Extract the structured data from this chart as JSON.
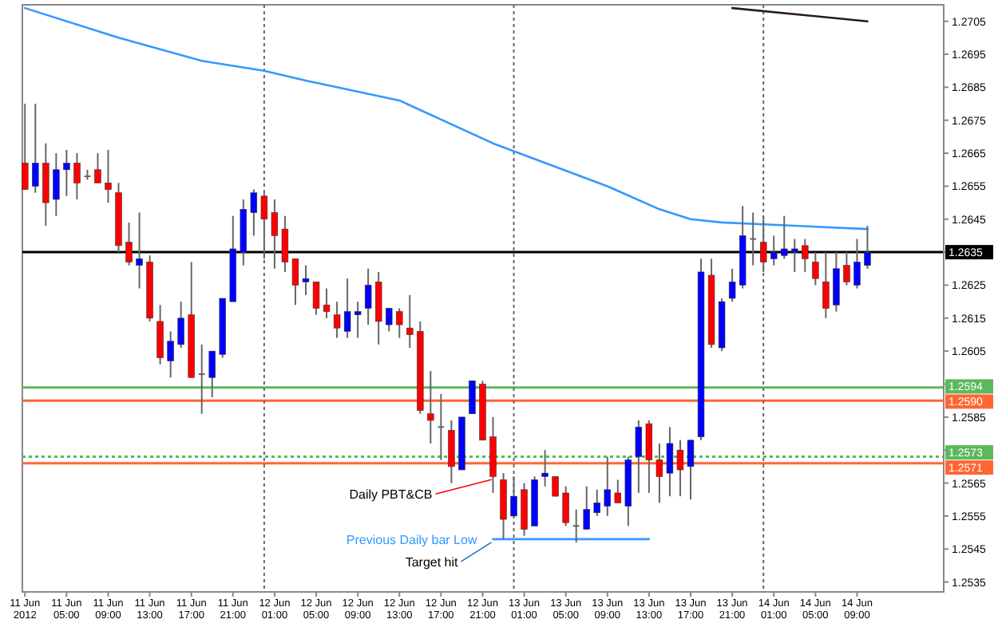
{
  "chart_data": {
    "type": "candlestick",
    "x": [
      "2012-06-11T01:00",
      "2012-06-11T02:00",
      "2012-06-11T03:00",
      "2012-06-11T04:00",
      "2012-06-11T05:00",
      "2012-06-11T06:00",
      "2012-06-11T07:00",
      "2012-06-11T08:00",
      "2012-06-11T09:00",
      "2012-06-11T10:00",
      "2012-06-11T11:00",
      "2012-06-11T12:00",
      "2012-06-11T13:00",
      "2012-06-11T14:00",
      "2012-06-11T15:00",
      "2012-06-11T16:00",
      "2012-06-11T17:00",
      "2012-06-11T18:00",
      "2012-06-11T19:00",
      "2012-06-11T20:00",
      "2012-06-11T21:00",
      "2012-06-11T22:00",
      "2012-06-11T23:00",
      "2012-06-12T00:00",
      "2012-06-12T01:00",
      "2012-06-12T02:00",
      "2012-06-12T03:00",
      "2012-06-12T04:00",
      "2012-06-12T05:00",
      "2012-06-12T06:00",
      "2012-06-12T07:00",
      "2012-06-12T08:00",
      "2012-06-12T09:00",
      "2012-06-12T10:00",
      "2012-06-12T11:00",
      "2012-06-12T12:00",
      "2012-06-12T13:00",
      "2012-06-12T14:00",
      "2012-06-12T15:00",
      "2012-06-12T16:00",
      "2012-06-12T17:00",
      "2012-06-12T18:00",
      "2012-06-12T19:00",
      "2012-06-12T20:00",
      "2012-06-12T21:00",
      "2012-06-12T22:00",
      "2012-06-12T23:00",
      "2012-06-13T00:00",
      "2012-06-13T01:00",
      "2012-06-13T02:00",
      "2012-06-13T03:00",
      "2012-06-13T04:00",
      "2012-06-13T05:00",
      "2012-06-13T06:00",
      "2012-06-13T07:00",
      "2012-06-13T08:00",
      "2012-06-13T09:00",
      "2012-06-13T10:00",
      "2012-06-13T11:00",
      "2012-06-13T12:00",
      "2012-06-13T13:00",
      "2012-06-13T14:00",
      "2012-06-13T15:00",
      "2012-06-13T16:00",
      "2012-06-13T17:00",
      "2012-06-13T18:00",
      "2012-06-13T19:00",
      "2012-06-13T20:00",
      "2012-06-13T21:00",
      "2012-06-13T22:00",
      "2012-06-13T23:00",
      "2012-06-14T00:00",
      "2012-06-14T01:00",
      "2012-06-14T02:00",
      "2012-06-14T03:00",
      "2012-06-14T04:00",
      "2012-06-14T05:00",
      "2012-06-14T06:00",
      "2012-06-14T07:00",
      "2012-06-14T08:00",
      "2012-06-14T09:00",
      "2012-06-14T10:00"
    ],
    "ohlc": [
      [
        1.2662,
        1.268,
        1.2654,
        1.2654
      ],
      [
        1.2655,
        1.268,
        1.2653,
        1.2662
      ],
      [
        1.2662,
        1.2668,
        1.2643,
        1.265
      ],
      [
        1.2651,
        1.2665,
        1.2646,
        1.266
      ],
      [
        1.266,
        1.2666,
        1.2652,
        1.2662
      ],
      [
        1.2662,
        1.2665,
        1.2651,
        1.2656
      ],
      [
        1.2658,
        1.266,
        1.2657,
        1.2658
      ],
      [
        1.266,
        1.2665,
        1.2656,
        1.2656
      ],
      [
        1.2656,
        1.2666,
        1.265,
        1.2654
      ],
      [
        1.2653,
        1.2656,
        1.2635,
        1.2637
      ],
      [
        1.2638,
        1.2644,
        1.2631,
        1.2632
      ],
      [
        1.2631,
        1.2647,
        1.2624,
        1.2633
      ],
      [
        1.2632,
        1.2634,
        1.2614,
        1.2615
      ],
      [
        1.2614,
        1.2619,
        1.2601,
        1.2603
      ],
      [
        1.2602,
        1.2611,
        1.2597,
        1.2608
      ],
      [
        1.2607,
        1.262,
        1.2606,
        1.2615
      ],
      [
        1.2616,
        1.2632,
        1.2597,
        1.2597
      ],
      [
        1.2598,
        1.2607,
        1.2586,
        1.2598
      ],
      [
        1.2597,
        1.2605,
        1.2591,
        1.2605
      ],
      [
        1.2604,
        1.2621,
        1.2603,
        1.2621
      ],
      [
        1.262,
        1.2646,
        1.262,
        1.2636
      ],
      [
        1.2635,
        1.2651,
        1.2631,
        1.2648
      ],
      [
        1.2647,
        1.2654,
        1.264,
        1.2653
      ],
      [
        1.2652,
        1.2653,
        1.2633,
        1.2645
      ],
      [
        1.2647,
        1.2651,
        1.263,
        1.264
      ],
      [
        1.2642,
        1.2646,
        1.2629,
        1.2632
      ],
      [
        1.2633,
        1.2633,
        1.2619,
        1.2625
      ],
      [
        1.2626,
        1.2631,
        1.2622,
        1.2627
      ],
      [
        1.2626,
        1.2626,
        1.2616,
        1.2618
      ],
      [
        1.2619,
        1.2624,
        1.2615,
        1.2617
      ],
      [
        1.2616,
        1.262,
        1.2609,
        1.2612
      ],
      [
        1.2611,
        1.2627,
        1.2609,
        1.2617
      ],
      [
        1.2616,
        1.262,
        1.2609,
        1.2617
      ],
      [
        1.2618,
        1.263,
        1.2613,
        1.2625
      ],
      [
        1.2626,
        1.2629,
        1.2607,
        1.2614
      ],
      [
        1.2613,
        1.2618,
        1.2611,
        1.2618
      ],
      [
        1.2617,
        1.2618,
        1.2609,
        1.2613
      ],
      [
        1.2612,
        1.2622,
        1.2606,
        1.261
      ],
      [
        1.2611,
        1.2614,
        1.2586,
        1.2587
      ],
      [
        1.2586,
        1.2599,
        1.2577,
        1.2584
      ],
      [
        1.2582,
        1.2592,
        1.2572,
        1.2582
      ],
      [
        1.2581,
        1.2584,
        1.2565,
        1.257
      ],
      [
        1.2569,
        1.2585,
        1.2569,
        1.2585
      ],
      [
        1.2586,
        1.2596,
        1.2586,
        1.2596
      ],
      [
        1.2595,
        1.2596,
        1.2578,
        1.2578
      ],
      [
        1.2579,
        1.2585,
        1.2562,
        1.2567
      ],
      [
        1.2566,
        1.2568,
        1.2548,
        1.2554
      ],
      [
        1.2555,
        1.2567,
        1.2555,
        1.2561
      ],
      [
        1.2563,
        1.2565,
        1.2549,
        1.2551
      ],
      [
        1.2552,
        1.2567,
        1.2552,
        1.2566
      ],
      [
        1.2567,
        1.2575,
        1.2564,
        1.2568
      ],
      [
        1.2567,
        1.2567,
        1.2561,
        1.2561
      ],
      [
        1.2562,
        1.2564,
        1.2552,
        1.2553
      ],
      [
        1.2552,
        1.2557,
        1.2547,
        1.2552
      ],
      [
        1.2551,
        1.2564,
        1.2551,
        1.2557
      ],
      [
        1.2556,
        1.2563,
        1.2555,
        1.2559
      ],
      [
        1.2558,
        1.2573,
        1.2555,
        1.2563
      ],
      [
        1.2562,
        1.2566,
        1.2559,
        1.2559
      ],
      [
        1.2558,
        1.2573,
        1.2552,
        1.2572
      ],
      [
        1.2573,
        1.2584,
        1.2562,
        1.2582
      ],
      [
        1.2583,
        1.2584,
        1.2562,
        1.2572
      ],
      [
        1.2572,
        1.2577,
        1.2559,
        1.2567
      ],
      [
        1.2568,
        1.2582,
        1.2561,
        1.2577
      ],
      [
        1.2575,
        1.2578,
        1.2561,
        1.2569
      ],
      [
        1.257,
        1.2578,
        1.256,
        1.2578
      ],
      [
        1.2579,
        1.2633,
        1.2578,
        1.2629
      ],
      [
        1.2628,
        1.2633,
        1.2606,
        1.2607
      ],
      [
        1.2606,
        1.2621,
        1.2605,
        1.262
      ],
      [
        1.2621,
        1.263,
        1.262,
        1.2626
      ],
      [
        1.2625,
        1.2649,
        1.2624,
        1.264
      ],
      [
        1.2639,
        1.2647,
        1.2631,
        1.2639
      ],
      [
        1.2638,
        1.2646,
        1.2629,
        1.2632
      ],
      [
        1.2633,
        1.264,
        1.2631,
        1.2635
      ],
      [
        1.2634,
        1.2646,
        1.2633,
        1.2636
      ],
      [
        1.2635,
        1.2639,
        1.2629,
        1.2636
      ],
      [
        1.2637,
        1.2639,
        1.2629,
        1.2633
      ],
      [
        1.2632,
        1.2635,
        1.2625,
        1.2627
      ],
      [
        1.2626,
        1.2635,
        1.2615,
        1.2618
      ],
      [
        1.2619,
        1.2635,
        1.2617,
        1.263
      ],
      [
        1.2631,
        1.2635,
        1.2625,
        1.2626
      ],
      [
        1.2625,
        1.2639,
        1.2624,
        1.2632
      ],
      [
        1.2631,
        1.2643,
        1.263,
        1.2635
      ]
    ],
    "series": [
      {
        "type": "line",
        "color": "#3399ff",
        "x": [
          "2012-06-11T01:00",
          "2012-06-11T10:00",
          "2012-06-11T18:00",
          "2012-06-12T00:00",
          "2012-06-12T04:00",
          "2012-06-12T13:00",
          "2012-06-12T22:00",
          "2012-06-13T09:00",
          "2012-06-13T14:00",
          "2012-06-13T17:00",
          "2012-06-13T20:00",
          "2012-06-14T03:00",
          "2012-06-14T10:00"
        ],
        "values": [
          1.2709,
          1.27,
          1.2693,
          1.269,
          1.2687,
          1.2681,
          1.2668,
          1.2655,
          1.2648,
          1.2645,
          1.2644,
          1.2643,
          1.2642
        ]
      },
      {
        "type": "line",
        "color": "#2b1a1a",
        "x": [
          "2012-06-13T21:00",
          "2012-06-14T10:00"
        ],
        "values": [
          1.2709,
          1.2705
        ]
      },
      {
        "type": "line",
        "color": "#3399ff",
        "name": "Previous Daily bar Low",
        "x": [
          "2012-06-12T22:00",
          "2012-06-13T13:00"
        ],
        "values": [
          1.2548,
          1.2548
        ]
      }
    ],
    "xlim": [
      "2012-06-11T00:45",
      "2012-06-14T17:20"
    ],
    "ylim": [
      1.2532,
      1.271
    ],
    "xticks": [
      {
        "value": "2012-06-11T01:00",
        "label": "11 Jun 2012"
      },
      {
        "value": "2012-06-11T05:00",
        "label": "11 Jun 05:00"
      },
      {
        "value": "2012-06-11T09:00",
        "label": "11 Jun 09:00"
      },
      {
        "value": "2012-06-11T13:00",
        "label": "11 Jun 13:00"
      },
      {
        "value": "2012-06-11T17:00",
        "label": "11 Jun 17:00"
      },
      {
        "value": "2012-06-11T21:00",
        "label": "11 Jun 21:00"
      },
      {
        "value": "2012-06-12T01:00",
        "label": "12 Jun 01:00"
      },
      {
        "value": "2012-06-12T05:00",
        "label": "12 Jun 05:00"
      },
      {
        "value": "2012-06-12T09:00",
        "label": "12 Jun 09:00"
      },
      {
        "value": "2012-06-12T13:00",
        "label": "12 Jun 13:00"
      },
      {
        "value": "2012-06-12T17:00",
        "label": "12 Jun 17:00"
      },
      {
        "value": "2012-06-12T21:00",
        "label": "12 Jun 21:00"
      },
      {
        "value": "2012-06-13T01:00",
        "label": "13 Jun 01:00"
      },
      {
        "value": "2012-06-13T05:00",
        "label": "13 Jun 05:00"
      },
      {
        "value": "2012-06-13T09:00",
        "label": "13 Jun 09:00"
      },
      {
        "value": "2012-06-13T13:00",
        "label": "13 Jun 13:00"
      },
      {
        "value": "2012-06-13T17:00",
        "label": "13 Jun 17:00"
      },
      {
        "value": "2012-06-13T21:00",
        "label": "13 Jun 21:00"
      },
      {
        "value": "2012-06-14T01:00",
        "label": "14 Jun 01:00"
      },
      {
        "value": "2012-06-14T05:00",
        "label": "14 Jun 05:00"
      },
      {
        "value": "2012-06-14T09:00",
        "label": "14 Jun 09:00"
      }
    ],
    "yticks": [
      1.2535,
      1.2545,
      1.2555,
      1.2565,
      {
        "value": 1.2575,
        "label": null
      },
      1.2585,
      {
        "value": 1.2595,
        "label": null
      },
      1.2605,
      1.2615,
      1.2625,
      {
        "value": 1.2635,
        "label": null
      },
      1.2645,
      1.2655,
      1.2665,
      1.2675,
      1.2685,
      1.2695,
      1.2705
    ],
    "ref_lines": [
      {
        "axis": "y",
        "value": 1.2635,
        "label": "1.2635",
        "color": "#000000"
      },
      {
        "axis": "y",
        "value": 1.2594,
        "label": "1.2594",
        "color": "#5cb85c"
      },
      {
        "axis": "y",
        "value": 1.259,
        "label": "1.2590",
        "color": "#ff6633"
      },
      {
        "axis": "y",
        "value": 1.2573,
        "label": "1.2573",
        "color": "#5cb85c",
        "line_style": "dotted"
      },
      {
        "axis": "y",
        "value": 1.2571,
        "label": "1.2571",
        "color": "#ff6633"
      },
      {
        "axis": "x",
        "value": "2012-06-12T00:00",
        "color": "#666666",
        "line_style": "dotted"
      },
      {
        "axis": "x",
        "value": "2012-06-13T00:00",
        "color": "#666666",
        "line_style": "dotted"
      },
      {
        "axis": "x",
        "value": "2012-06-14T00:00",
        "color": "#666666",
        "line_style": "dotted"
      }
    ],
    "annotations": [
      {
        "text": "Daily PBT&CB",
        "x": "2012-06-12T22:00",
        "y": 1.2567
      },
      {
        "text": "Target hit",
        "x": "2012-06-12T22:00",
        "y": 1.2548
      }
    ]
  }
}
